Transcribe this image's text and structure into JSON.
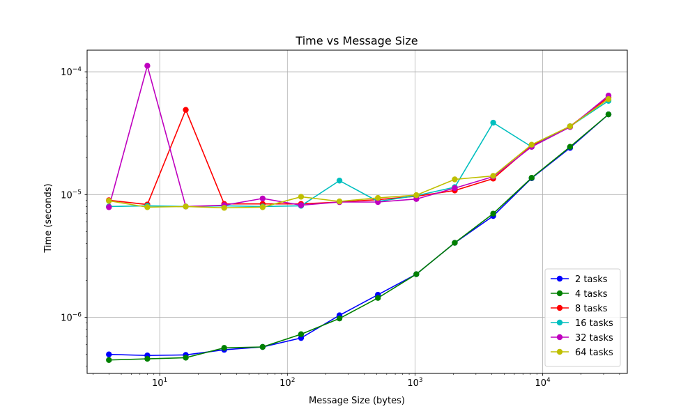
{
  "chart_data": {
    "type": "line",
    "title": "Time vs Message Size",
    "xlabel": "Message Size (bytes)",
    "ylabel": "Time (seconds)",
    "xscale": "log",
    "yscale": "log",
    "xlim": [
      2.7,
      46000
    ],
    "ylim": [
      3.5e-07,
      0.00015
    ],
    "grid": true,
    "legend_position": "lower right",
    "x_ticks": [
      {
        "value": 10,
        "base": "10",
        "exp": "1"
      },
      {
        "value": 100,
        "base": "10",
        "exp": "2"
      },
      {
        "value": 1000,
        "base": "10",
        "exp": "3"
      },
      {
        "value": 10000,
        "base": "10",
        "exp": "4"
      }
    ],
    "y_ticks": [
      {
        "value": 1e-06,
        "base": "10",
        "exp": "−6"
      },
      {
        "value": 1e-05,
        "base": "10",
        "exp": "−5"
      },
      {
        "value": 0.0001,
        "base": "10",
        "exp": "−4"
      }
    ],
    "x": [
      4,
      8,
      16,
      32,
      64,
      128,
      256,
      512,
      1024,
      2048,
      4096,
      8192,
      16384,
      32768
    ],
    "series": [
      {
        "name": "2 tasks",
        "color": "#0000ff",
        "values": [
          5e-07,
          4.9e-07,
          4.95e-07,
          5.45e-07,
          5.75e-07,
          6.8e-07,
          1.04e-06,
          1.53e-06,
          2.25e-06,
          4.05e-06,
          6.7e-06,
          1.36e-05,
          2.4e-05,
          4.5e-05
        ]
      },
      {
        "name": "4 tasks",
        "color": "#008000",
        "values": [
          4.5e-07,
          4.6e-07,
          4.7e-07,
          5.65e-07,
          5.75e-07,
          7.3e-07,
          9.8e-07,
          1.44e-06,
          2.25e-06,
          4.05e-06,
          7e-06,
          1.37e-05,
          2.45e-05,
          4.5e-05
        ]
      },
      {
        "name": "8 tasks",
        "color": "#ff0000",
        "values": [
          9e-06,
          8.3e-06,
          4.9e-05,
          8.4e-06,
          8.4e-06,
          8.4e-06,
          8.7e-06,
          9.1e-06,
          9.7e-06,
          1.08e-05,
          1.35e-05,
          2.5e-05,
          3.6e-05,
          6.2e-05
        ]
      },
      {
        "name": "16 tasks",
        "color": "#00bfbf",
        "values": [
          8e-06,
          8.1e-06,
          8e-06,
          8.1e-06,
          8e-06,
          8.1e-06,
          1.3e-05,
          8.8e-06,
          9.8e-06,
          1.15e-05,
          3.85e-05,
          2.45e-05,
          3.6e-05,
          5.8e-05
        ]
      },
      {
        "name": "32 tasks",
        "color": "#bf00bf",
        "values": [
          7.9e-06,
          0.000112,
          8e-06,
          8.2e-06,
          9.3e-06,
          8.2e-06,
          8.7e-06,
          8.7e-06,
          9.2e-06,
          1.13e-05,
          1.4e-05,
          2.45e-05,
          3.55e-05,
          6.4e-05
        ]
      },
      {
        "name": "64 tasks",
        "color": "#bfbf00",
        "values": [
          8.9e-06,
          7.9e-06,
          8e-06,
          7.8e-06,
          7.9e-06,
          9.6e-06,
          8.8e-06,
          9.4e-06,
          9.9e-06,
          1.33e-05,
          1.42e-05,
          2.55e-05,
          3.6e-05,
          6e-05
        ]
      }
    ]
  }
}
